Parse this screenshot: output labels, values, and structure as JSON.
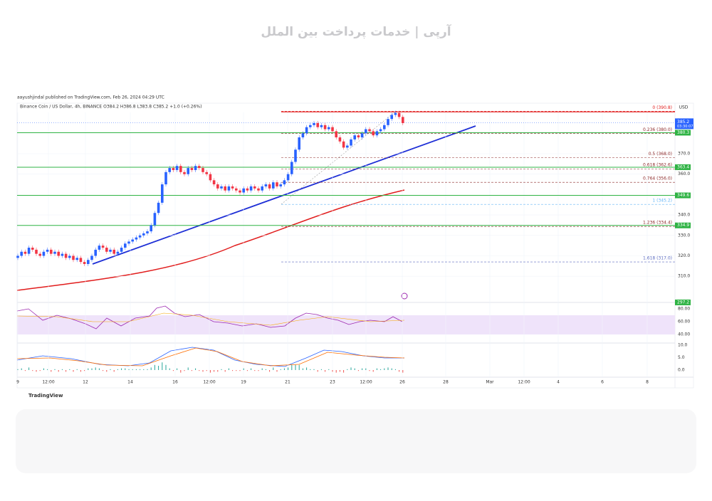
{
  "watermark": "آرپی | خدمات پرداخت بین الملل",
  "publisher": "aayushjindal published on TradingView.com, Feb 26, 2024 04:29 UTC",
  "legend": "Binance Coin / US Dollar, 4h, BINANCE  O384.2  H386.8  L383.8  C385.2  +1.0 (+0.26%)",
  "currency": "USD",
  "countdown": "03:30:07",
  "brand": "TradingView",
  "chart_data": {
    "type": "candlestick",
    "first_open": 319,
    "closes": [
      320,
      322,
      321,
      324,
      323,
      321,
      320,
      322,
      323,
      321,
      322,
      320,
      321,
      319,
      320,
      318,
      319,
      317,
      316,
      318,
      320,
      323,
      325,
      324,
      322,
      323,
      321,
      322,
      324,
      326,
      327,
      328,
      329,
      330,
      331,
      332,
      335,
      341,
      346,
      355,
      361,
      363,
      362,
      364,
      361,
      360,
      363,
      362,
      364,
      363,
      361,
      360,
      357,
      355,
      353,
      354,
      352,
      354,
      353,
      352,
      351,
      353,
      352,
      354,
      353,
      352,
      354,
      355,
      353,
      356,
      354,
      355,
      357,
      360,
      366,
      372,
      378,
      380,
      383,
      384,
      385,
      383,
      384,
      382,
      383,
      381,
      378,
      376,
      373,
      374,
      377,
      379,
      378,
      380,
      382,
      381,
      379,
      381,
      382,
      384,
      387,
      389,
      390,
      388,
      385
    ],
    "up_color": "#2962ff",
    "down_color": "#f23645",
    "yticks": [
      {
        "value": 370,
        "label": "370.0"
      },
      {
        "value": 360,
        "label": "360.0"
      },
      {
        "value": 340,
        "label": "340.0"
      },
      {
        "value": 330,
        "label": "330.0"
      },
      {
        "value": 320,
        "label": "320.0"
      },
      {
        "value": 310,
        "label": "310.0"
      }
    ],
    "xtick_labels": [
      "9",
      "12:00",
      "12",
      "14",
      "16",
      "12:00",
      "19",
      "21",
      "23",
      "12:00",
      "26",
      "28",
      "Mar",
      "12:00",
      "4",
      "6",
      "8"
    ],
    "last_price": {
      "value": 385.2,
      "label": "385.2"
    },
    "levels": [
      {
        "value": 380.3,
        "label": "380.3"
      },
      {
        "value": 363.4,
        "label": "363.4"
      },
      {
        "value": 349.6,
        "label": "349.6"
      },
      {
        "value": 334.9,
        "label": "334.9"
      },
      {
        "value": 297.2,
        "label": "297.2"
      }
    ],
    "fib": [
      {
        "price": 390.8,
        "label": "0 (390.8)"
      },
      {
        "price": 380,
        "label": "0.236 (380.0)"
      },
      {
        "price": 368,
        "label": "0.5 (368.0)"
      },
      {
        "price": 362.6,
        "label": "0.618 (362.6)"
      },
      {
        "price": 356,
        "label": "0.764 (356.0)"
      },
      {
        "price": 345.2,
        "label": "1 (345.2)"
      },
      {
        "price": 334.4,
        "label": "1.236 (334.4)"
      },
      {
        "price": 317,
        "label": "1.618 (317.0)"
      }
    ],
    "rsi_ticks": [
      {
        "value": 80,
        "label": "80.00"
      },
      {
        "value": 60,
        "label": "60.00"
      },
      {
        "value": 40,
        "label": "40.00"
      }
    ],
    "macd_ticks": [
      {
        "value": 10,
        "label": "10.0"
      },
      {
        "value": 5,
        "label": "5.0"
      },
      {
        "value": 0,
        "label": "0.0"
      }
    ]
  }
}
